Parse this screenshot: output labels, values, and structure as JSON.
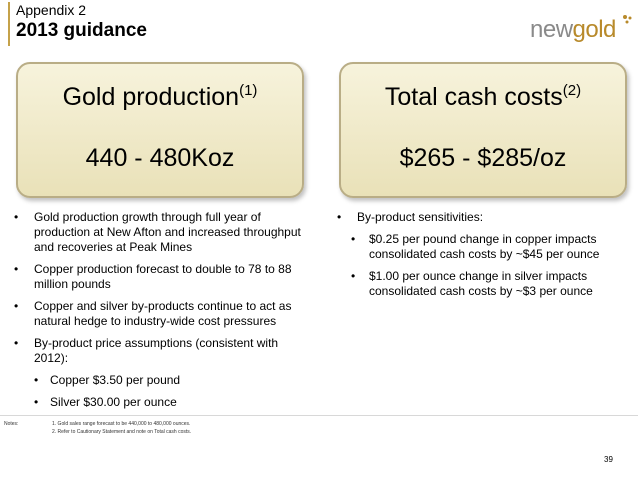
{
  "header": {
    "appendix": "Appendix 2",
    "title": "2013 guidance"
  },
  "logo": {
    "text_new": "new",
    "text_gold": "gold"
  },
  "boxes": {
    "gold": {
      "label": "Gold production",
      "ref": "(1)",
      "value": "440 - 480Koz"
    },
    "cost": {
      "label": "Total cash costs",
      "ref": "(2)",
      "value": "$265 - $285/oz"
    }
  },
  "left_bullets": [
    "Gold production growth through full year of production at New Afton and increased throughput and recoveries at Peak Mines",
    "Copper production forecast to double to 78 to 88 million pounds",
    "Copper and silver by-products continue to act as natural hedge to industry-wide cost pressures",
    "By-product price assumptions (consistent with 2012):"
  ],
  "left_sub_bullets": [
    "Copper $3.50 per pound",
    "Silver $30.00 per ounce"
  ],
  "right_bullet": "By-product sensitivities:",
  "right_sub_bullets": [
    "$0.25 per pound change in copper impacts consolidated cash costs by ~$45 per ounce",
    "$1.00 per ounce change in silver impacts consolidated cash costs by ~$3 per ounce"
  ],
  "bullet_char": "•",
  "notes": {
    "label": "Notes:",
    "note1": "1. Gold sales range forecast to be 440,000 to 480,000 ounces.",
    "note2": "2. Refer to Cautionary Statement and note on Total cash costs."
  },
  "page_number": "39",
  "colors": {
    "box_fill": "#efe9c8",
    "box_border": "#b9ad86",
    "brand_gold": "#b88a2b",
    "brand_grey": "#8a8a8a"
  }
}
